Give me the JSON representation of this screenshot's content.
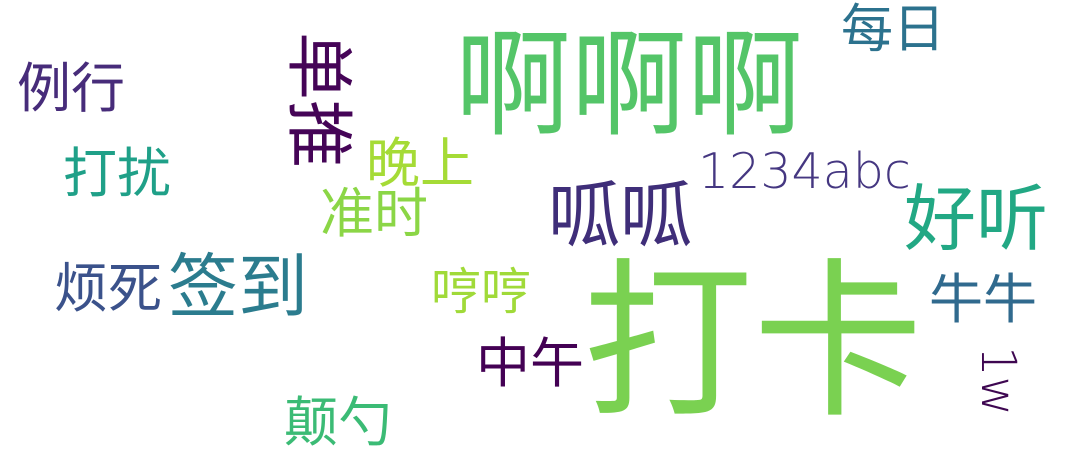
{
  "words": [
    {
      "id": "daka",
      "text": "打卡",
      "color": "#7ad151"
    },
    {
      "id": "aaa",
      "text": "啊啊啊",
      "color": "#54c568"
    },
    {
      "id": "guagua",
      "text": "呱呱",
      "color": "#3f2e79"
    },
    {
      "id": "qiandao",
      "text": "签到",
      "color": "#2b7c8e"
    },
    {
      "id": "haoting",
      "text": "好听",
      "color": "#22a884"
    },
    {
      "id": "abc",
      "text": "1234abc",
      "color": "#453781"
    },
    {
      "id": "dantui",
      "text": "单推",
      "color": "#450457"
    },
    {
      "id": "liexing",
      "text": "例行",
      "color": "#472c7a"
    },
    {
      "id": "daraot",
      "text": "打扰",
      "color": "#1fa088"
    },
    {
      "id": "wanshang",
      "text": "晚上",
      "color": "#a5db36"
    },
    {
      "id": "zhunshi",
      "text": "准时",
      "color": "#8bd646"
    },
    {
      "id": "fansi",
      "text": "烦死",
      "color": "#3b528b"
    },
    {
      "id": "hengheng",
      "text": "哼哼",
      "color": "#a0da39"
    },
    {
      "id": "zhongwu",
      "text": "中午",
      "color": "#440154"
    },
    {
      "id": "niuniu",
      "text": "牛牛",
      "color": "#306a8e"
    },
    {
      "id": "meiri",
      "text": "每日",
      "color": "#2c728e"
    },
    {
      "id": "dianyun",
      "text": "颠勺",
      "color": "#3bbb75"
    },
    {
      "id": "onew",
      "text": "1w",
      "color": "#3e0751"
    }
  ]
}
